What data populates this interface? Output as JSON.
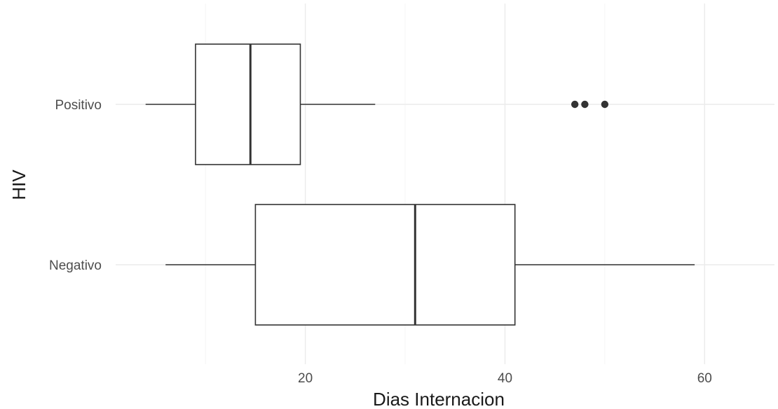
{
  "chart_data": {
    "type": "boxplot",
    "orientation": "horizontal",
    "title": "",
    "xlabel": "Dias Internacion",
    "ylabel": "HIV",
    "xlim": [
      1,
      67
    ],
    "x_ticks": [
      20,
      40,
      60
    ],
    "grid": true,
    "legend": "none",
    "categories": [
      "Negativo",
      "Positivo"
    ],
    "series": [
      {
        "category": "Negativo",
        "min": 6,
        "q1": 15,
        "median": 31,
        "q3": 41,
        "max": 59,
        "outliers": []
      },
      {
        "category": "Positivo",
        "min": 4,
        "q1": 9,
        "median": 14.5,
        "q3": 19.5,
        "max": 27,
        "outliers": [
          47,
          48,
          50
        ]
      }
    ],
    "colors": {
      "box_fill": "#ffffff",
      "box_line": "#333333",
      "grid": "#ebebeb"
    }
  }
}
